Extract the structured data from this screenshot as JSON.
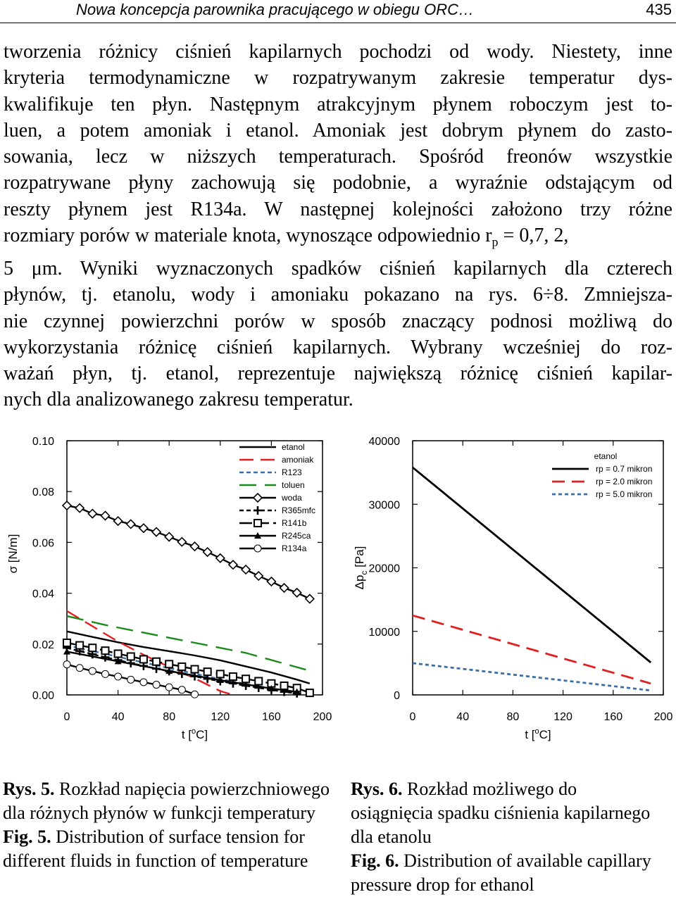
{
  "header": {
    "title": "Nowa koncepcja parownika pracującego w obiegu ORC…",
    "page_number": "435"
  },
  "body_lines": [
    "tworzenia różnicy ciśnień kapilarnych pochodzi od wody. Niestety, inne",
    "kryteria termodynamiczne w rozpatrywanym zakresie temperatur dys-",
    "kwalifikuje ten płyn. Następnym atrakcyjnym płynem roboczym jest to-",
    "luen, a potem amoniak i etanol. Amoniak jest dobrym płynem do zasto-",
    "sowania, lecz w niższych temperaturach. Spośród freonów wszystkie",
    "rozpatrywane płyny zachowują się podobnie, a wyraźnie odstającym od",
    "reszty płynem jest R134a. W następnej kolejności założono trzy różne",
    "rozmiary porów w materiale knota, wynoszące odpowiednio r",
    "5 μm. Wyniki wyznaczonych spadków ciśnień kapilarnych dla czterech",
    "płynów, tj. etanolu, wody i amoniaku pokazano na rys. 6÷8. Zmniejsza-",
    "nie czynnej powierzchni porów w sposób znaczący podnosi możliwą do",
    "wykorzystania różnicę ciśnień kapilarnych. Wybrany wcześniej do roz-",
    "ważań płyn, tj. etanol, reprezentuje największą różnicę ciśnień kapilar-",
    "nych dla analizowanego zakresu temperatur."
  ],
  "body_line8_sub": "p",
  "body_line8_tail": " = 0,7, 2,",
  "captions": {
    "fig5": {
      "pl_label": "Rys. 5.",
      "pl_text": " Rozkład napięcia powierzchniowego dla różnych płynów w funkcji temperatury",
      "en_label": "Fig. 5.",
      "en_text": " Distribution of surface tension for different fluids in function of temperature"
    },
    "fig6": {
      "pl_label": "Rys. 6.",
      "pl_text": " Rozkład możliwego do osiągnięcia spadku ciśnienia kapilarnego dla etanolu",
      "en_label": "Fig. 6.",
      "en_text": " Distribution of available capillary pressure drop for ethanol"
    }
  },
  "chart_data": [
    {
      "type": "line",
      "title": "",
      "xlabel_main": "t [",
      "xlabel_sup": "o",
      "xlabel_end": "C]",
      "ylabel": "σ [N/m]",
      "xlim": [
        0,
        200
      ],
      "ylim": [
        0,
        0.1
      ],
      "x_ticks": [
        "0",
        "40",
        "80",
        "120",
        "160",
        "200"
      ],
      "y_ticks": [
        "0.00",
        "0.02",
        "0.04",
        "0.06",
        "0.08",
        "0.10"
      ],
      "legend_position": "top-right",
      "series": [
        {
          "name": "etanol",
          "color": "#000000",
          "dash": "",
          "marker": "none",
          "x": [
            0,
            20,
            40,
            60,
            80,
            100,
            120,
            140,
            160,
            180,
            190
          ],
          "y": [
            0.025,
            0.0228,
            0.0207,
            0.0188,
            0.0172,
            0.0155,
            0.0136,
            0.0112,
            0.0088,
            0.006,
            0.0045
          ]
        },
        {
          "name": "amoniak",
          "color": "#e02020",
          "dash": "20,10",
          "marker": "none",
          "x": [
            0,
            20,
            40,
            60,
            80,
            100,
            120,
            130
          ],
          "y": [
            0.033,
            0.027,
            0.021,
            0.0158,
            0.011,
            0.0065,
            0.0015,
            0.0
          ]
        },
        {
          "name": "R123",
          "color": "#3a6ea5",
          "dash": "6,4",
          "marker": "none",
          "x": [
            0,
            40,
            80,
            120,
            160,
            180
          ],
          "y": [
            0.0195,
            0.015,
            0.0105,
            0.0062,
            0.0025,
            0.001
          ]
        },
        {
          "name": "toluen",
          "color": "#1a8a1a",
          "dash": "24,12",
          "marker": "none",
          "x": [
            0,
            30,
            60,
            100,
            140,
            190
          ],
          "y": [
            0.031,
            0.0275,
            0.0245,
            0.0205,
            0.0165,
            0.0095
          ]
        },
        {
          "name": "woda",
          "color": "#000000",
          "dash": "",
          "marker": "diamond",
          "x": [
            0,
            10,
            20,
            30,
            40,
            50,
            60,
            70,
            80,
            90,
            100,
            110,
            120,
            130,
            140,
            150,
            160,
            170,
            180,
            190
          ],
          "y": [
            0.0745,
            0.0735,
            0.0713,
            0.0705,
            0.0684,
            0.0672,
            0.0656,
            0.0641,
            0.0622,
            0.0602,
            0.0584,
            0.0562,
            0.0538,
            0.0512,
            0.0493,
            0.0468,
            0.0446,
            0.0421,
            0.0402,
            0.0378
          ]
        },
        {
          "name": "R365mfc",
          "color": "#000000",
          "dash": "6,4",
          "marker": "plus",
          "x": [
            0,
            10,
            20,
            30,
            40,
            50,
            60,
            70,
            80,
            90,
            100,
            110,
            120,
            130,
            140,
            150,
            160,
            170,
            180
          ],
          "y": [
            0.0185,
            0.0172,
            0.016,
            0.0148,
            0.0137,
            0.0125,
            0.0114,
            0.0103,
            0.0093,
            0.0083,
            0.0073,
            0.0063,
            0.0054,
            0.0045,
            0.0036,
            0.0028,
            0.002,
            0.0012,
            0.0006
          ]
        },
        {
          "name": "R141b",
          "color": "#000000",
          "dash": "18,6",
          "marker": "square",
          "x": [
            0,
            10,
            20,
            30,
            40,
            50,
            60,
            70,
            80,
            90,
            100,
            110,
            120,
            130,
            140,
            150,
            160,
            170,
            180,
            190
          ],
          "y": [
            0.0205,
            0.0195,
            0.0185,
            0.0174,
            0.0162,
            0.0151,
            0.014,
            0.0131,
            0.0121,
            0.0111,
            0.0101,
            0.0091,
            0.0082,
            0.0072,
            0.0063,
            0.0054,
            0.0045,
            0.0036,
            0.0027,
            0.0008
          ]
        },
        {
          "name": "R245ca",
          "color": "#000000",
          "dash": "",
          "marker": "triangle",
          "x": [
            0,
            40,
            80,
            120,
            160,
            180
          ],
          "y": [
            0.017,
            0.0132,
            0.0094,
            0.0058,
            0.0025,
            0.0012
          ]
        },
        {
          "name": "R134a",
          "color": "#000000",
          "dash": "",
          "marker": "circle",
          "x": [
            0,
            10,
            20,
            30,
            40,
            50,
            60,
            70,
            80,
            90,
            100
          ],
          "y": [
            0.012,
            0.0106,
            0.0094,
            0.0082,
            0.0072,
            0.006,
            0.005,
            0.004,
            0.003,
            0.002,
            0.0002
          ]
        }
      ]
    },
    {
      "type": "line",
      "title": "",
      "xlabel_main": "t [",
      "xlabel_sup": "o",
      "xlabel_end": "C]",
      "ylabel_main": "Δp",
      "ylabel_sub": "c",
      "ylabel_end": " [Pa]",
      "xlim": [
        0,
        200
      ],
      "ylim": [
        0,
        40000
      ],
      "x_ticks": [
        "0",
        "40",
        "80",
        "120",
        "160",
        "200"
      ],
      "y_ticks": [
        "0",
        "10000",
        "20000",
        "30000",
        "40000"
      ],
      "legend_title": "etanol",
      "legend_position": "top-right",
      "series": [
        {
          "name": "rp = 0.7 mikron",
          "color": "#000000",
          "dash": "",
          "x": [
            0,
            190
          ],
          "y": [
            35800,
            5100
          ]
        },
        {
          "name": "rp = 2.0 mikron",
          "color": "#e02020",
          "dash": "18,10",
          "x": [
            0,
            190
          ],
          "y": [
            12500,
            1800
          ]
        },
        {
          "name": "rp = 5.0 mikron",
          "color": "#3a6ea5",
          "dash": "5,4",
          "x": [
            0,
            190
          ],
          "y": [
            5000,
            700
          ]
        }
      ]
    }
  ]
}
